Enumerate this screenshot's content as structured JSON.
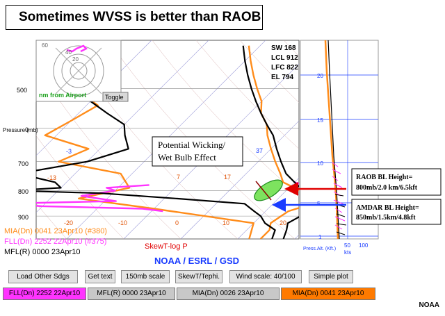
{
  "slide_title": "Sometimes WVSS is better than RAOB",
  "credit": "NOAA",
  "chart_data": {
    "type": "line",
    "title": "SkewT-log P",
    "subtitle": "NOAA / ESRL / GSD",
    "ylabel": "Pressure (mb)",
    "ylim": [
      1000,
      400
    ],
    "pressure_ticks": [
      "500",
      "0",
      "700",
      "800",
      "900"
    ],
    "temperature_ticks": [
      "-20",
      "-10",
      "0",
      "10",
      "20"
    ],
    "temperature_ticks_upper": [
      "-3",
      "-13",
      "7",
      "17",
      "37"
    ],
    "wind_panel": {
      "altitude_ticks": [
        "1",
        "5",
        "10",
        "15",
        "20"
      ],
      "wind_ticks": [
        "50",
        "100"
      ],
      "units_label": "kts",
      "alt_label": "Press.Alt. (Kft.)"
    },
    "inset": {
      "label": "nm from Airport",
      "range_ticks": [
        "20",
        "40",
        "60"
      ],
      "toggle_label": "Toggle"
    },
    "indices": [
      "SW 168",
      "LCL 912",
      "LFC 822",
      "EL 794"
    ],
    "legend": [
      {
        "name": "MIA(Dn) 0041 23Apr10 (#380)",
        "color": "#ff8c1a"
      },
      {
        "name": "FLL(Dn) 2252 22Apr10 (#375)",
        "color": "#ff33ff"
      },
      {
        "name": "MFL(R) 0000 23Apr10",
        "color": "#000000"
      }
    ],
    "series": [
      {
        "name": "MIA(Dn) 0041 23Apr10 (#380)",
        "color": "#ff8c1a",
        "points": [
          [
            14,
            1000
          ],
          [
            14,
            960
          ],
          [
            13,
            930
          ],
          [
            14,
            880
          ],
          [
            17,
            850
          ],
          [
            15,
            830
          ],
          [
            13,
            805
          ],
          [
            11,
            790
          ],
          [
            8,
            770
          ],
          [
            6,
            740
          ],
          [
            3,
            700
          ],
          [
            0,
            660
          ],
          [
            -3,
            620
          ],
          [
            -5,
            590
          ],
          [
            -8,
            560
          ],
          [
            -10,
            530
          ],
          [
            -13,
            500
          ],
          [
            -16,
            470
          ],
          [
            -19,
            440
          ],
          [
            -22,
            410
          ]
        ]
      },
      {
        "name": "MIA(Dn) 0041 23Apr10 (#380) dewpoint",
        "color": "#ff8c1a",
        "points": [
          [
            12,
            1000
          ],
          [
            10,
            930
          ],
          [
            -10,
            870
          ],
          [
            -25,
            830
          ],
          [
            -18,
            790
          ],
          [
            -22,
            740
          ],
          [
            -35,
            700
          ],
          [
            -32,
            660
          ],
          [
            -42,
            620
          ],
          [
            -40,
            580
          ],
          [
            -38,
            540
          ],
          [
            -45,
            500
          ],
          [
            -48,
            460
          ],
          [
            -52,
            420
          ]
        ]
      },
      {
        "name": "FLL(Dn) 2252 22Apr10 (#375)",
        "color": "#ff33ff",
        "points": [
          [
            18,
            850
          ],
          [
            16,
            840
          ],
          [
            15,
            830
          ],
          [
            14,
            820
          ],
          [
            16,
            810
          ],
          [
            15,
            800
          ],
          [
            13,
            790
          ],
          [
            12,
            780
          ],
          [
            10,
            770
          ]
        ]
      },
      {
        "name": "FLL(Dn) 2252 22Apr10 (#375) dewpoint",
        "color": "#ff33ff",
        "points": [
          [
            -8,
            880
          ],
          [
            -12,
            870
          ],
          [
            -30,
            860
          ],
          [
            -38,
            850
          ],
          [
            -18,
            840
          ],
          [
            -25,
            820
          ],
          [
            -20,
            800
          ],
          [
            -22,
            790
          ],
          [
            -15,
            780
          ]
        ]
      },
      {
        "name": "MFL(R) 0000 23Apr10",
        "color": "#000000",
        "points": [
          [
            18,
            1000
          ],
          [
            17,
            960
          ],
          [
            16,
            930
          ],
          [
            17,
            900
          ],
          [
            18,
            880
          ],
          [
            17,
            850
          ],
          [
            14,
            820
          ],
          [
            12,
            790
          ],
          [
            10,
            770
          ],
          [
            7,
            740
          ],
          [
            4,
            700
          ],
          [
            1,
            660
          ],
          [
            -2,
            620
          ],
          [
            -5,
            590
          ],
          [
            -8,
            560
          ],
          [
            -11,
            530
          ],
          [
            -14,
            500
          ],
          [
            -17,
            470
          ],
          [
            -20,
            440
          ],
          [
            -23,
            410
          ]
        ]
      },
      {
        "name": "MFL(R) 0000 23Apr10 dewpoint",
        "color": "#000000",
        "points": [
          [
            16,
            1000
          ],
          [
            15,
            960
          ],
          [
            12,
            930
          ],
          [
            10,
            900
          ],
          [
            8,
            880
          ],
          [
            5,
            850
          ],
          [
            -8,
            830
          ],
          [
            -22,
            810
          ],
          [
            -38,
            800
          ],
          [
            -30,
            790
          ],
          [
            -32,
            770
          ],
          [
            -40,
            740
          ],
          [
            -30,
            700
          ],
          [
            -25,
            660
          ],
          [
            -28,
            620
          ],
          [
            -30,
            590
          ],
          [
            -35,
            560
          ],
          [
            -40,
            530
          ],
          [
            -46,
            500
          ],
          [
            -50,
            470
          ],
          [
            -54,
            440
          ]
        ]
      }
    ],
    "annotations": [
      {
        "text": [
          "Potential Wicking/",
          "Wet Bulb Effect"
        ]
      },
      {
        "text": [
          "RAOB BL Height=",
          "800mb/2.0 km/6.5kft"
        ],
        "color": "#e00000"
      },
      {
        "text": [
          "AMDAR BL Height=",
          "850mb/1.5km/4.8kft"
        ],
        "color": "#1a3cff"
      }
    ]
  },
  "buttons": [
    "Load Other Sdgs",
    "Get text",
    "150mb scale",
    "SkewT/Tephi.",
    "Wind scale: 40/100",
    "Simple plot"
  ],
  "tabs": [
    {
      "label": "FLL(Dn) 2252 22Apr10",
      "color": "#ff33ff"
    },
    {
      "label": "MFL(R) 0000 23Apr10",
      "color": "#c8c8c8"
    },
    {
      "label": "MIA(Dn) 0026 23Apr10",
      "color": "#c8c8c8"
    },
    {
      "label": "MIA(Dn) 0041 23Apr10",
      "color": "#ff7a00"
    }
  ]
}
